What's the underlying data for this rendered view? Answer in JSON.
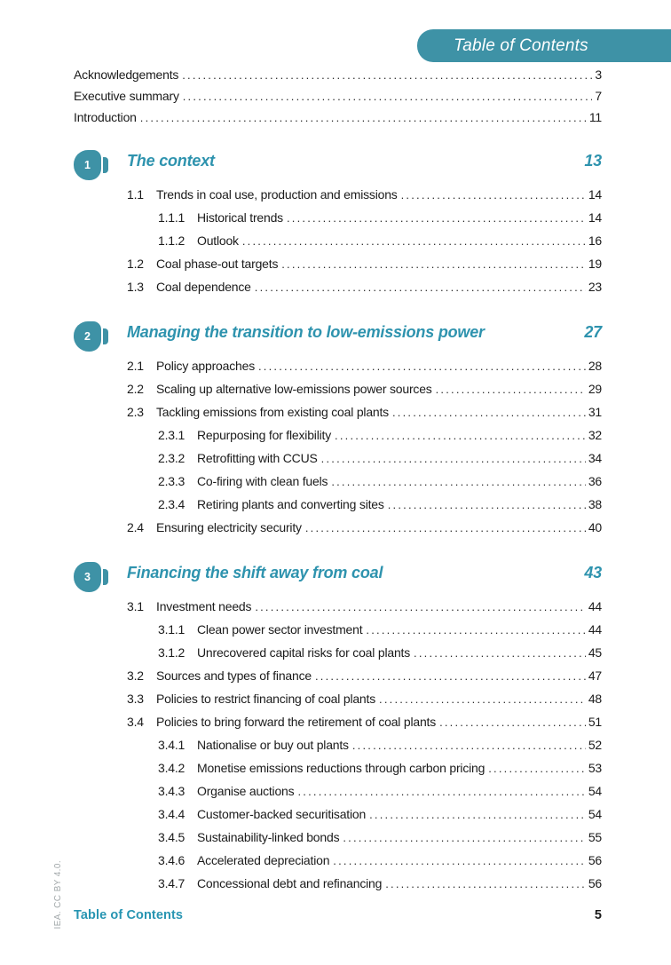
{
  "header": {
    "banner_title": "Table of Contents"
  },
  "front_matter": [
    {
      "title": "Acknowledgements",
      "page": "3"
    },
    {
      "title": "Executive summary",
      "page": "7"
    },
    {
      "title": "Introduction",
      "page": "11"
    }
  ],
  "chapters": [
    {
      "number": "1",
      "title": "The context",
      "page": "13",
      "entries": [
        {
          "number": "1.1",
          "title": "Trends in coal use, production and emissions",
          "page": "14"
        },
        {
          "number": "1.1.1",
          "title": "Historical trends",
          "page": "14"
        },
        {
          "number": "1.1.2",
          "title": "Outlook",
          "page": "16"
        },
        {
          "number": "1.2",
          "title": "Coal phase-out targets",
          "page": "19"
        },
        {
          "number": "1.3",
          "title": "Coal dependence",
          "page": "23"
        }
      ]
    },
    {
      "number": "2",
      "title": "Managing the transition to low-emissions power",
      "page": "27",
      "entries": [
        {
          "number": "2.1",
          "title": "Policy approaches",
          "page": "28"
        },
        {
          "number": "2.2",
          "title": "Scaling up alternative low-emissions power sources",
          "page": "29"
        },
        {
          "number": "2.3",
          "title": "Tackling emissions from existing coal plants",
          "page": "31"
        },
        {
          "number": "2.3.1",
          "title": "Repurposing for flexibility",
          "page": "32"
        },
        {
          "number": "2.3.2",
          "title": "Retrofitting with CCUS",
          "page": "34"
        },
        {
          "number": "2.3.3",
          "title": "Co-firing with clean fuels",
          "page": "36"
        },
        {
          "number": "2.3.4",
          "title": "Retiring plants and converting sites",
          "page": "38"
        },
        {
          "number": "2.4",
          "title": "Ensuring electricity security",
          "page": "40"
        }
      ]
    },
    {
      "number": "3",
      "title": "Financing the shift away from coal",
      "page": "43",
      "entries": [
        {
          "number": "3.1",
          "title": "Investment needs",
          "page": "44"
        },
        {
          "number": "3.1.1",
          "title": "Clean power sector investment",
          "page": "44"
        },
        {
          "number": "3.1.2",
          "title": "Unrecovered capital risks for coal plants",
          "page": "45"
        },
        {
          "number": "3.2",
          "title": "Sources and types of finance",
          "page": "47"
        },
        {
          "number": "3.3",
          "title": "Policies to restrict financing of coal plants",
          "page": "48"
        },
        {
          "number": "3.4",
          "title": "Policies to bring forward the retirement of coal plants",
          "page": "51"
        },
        {
          "number": "3.4.1",
          "title": "Nationalise or buy out plants",
          "page": "52"
        },
        {
          "number": "3.4.2",
          "title": "Monetise emissions reductions through carbon pricing",
          "page": "53"
        },
        {
          "number": "3.4.3",
          "title": "Organise auctions",
          "page": "54"
        },
        {
          "number": "3.4.4",
          "title": "Customer-backed securitisation",
          "page": "54"
        },
        {
          "number": "3.4.5",
          "title": "Sustainability-linked bonds",
          "page": "55"
        },
        {
          "number": "3.4.6",
          "title": "Accelerated depreciation",
          "page": "56"
        },
        {
          "number": "3.4.7",
          "title": "Concessional debt and refinancing",
          "page": "56"
        }
      ]
    }
  ],
  "footer": {
    "label": "Table of Contents",
    "page_number": "5",
    "side_note": "IEA. CC BY 4.0."
  },
  "colors": {
    "banner_teal": "#3e92a6",
    "heading_teal": "#2e93ae",
    "footer_teal": "#2795b2",
    "body_text": "#1b1b1b",
    "side_note_gray": "#a2a8aa"
  }
}
